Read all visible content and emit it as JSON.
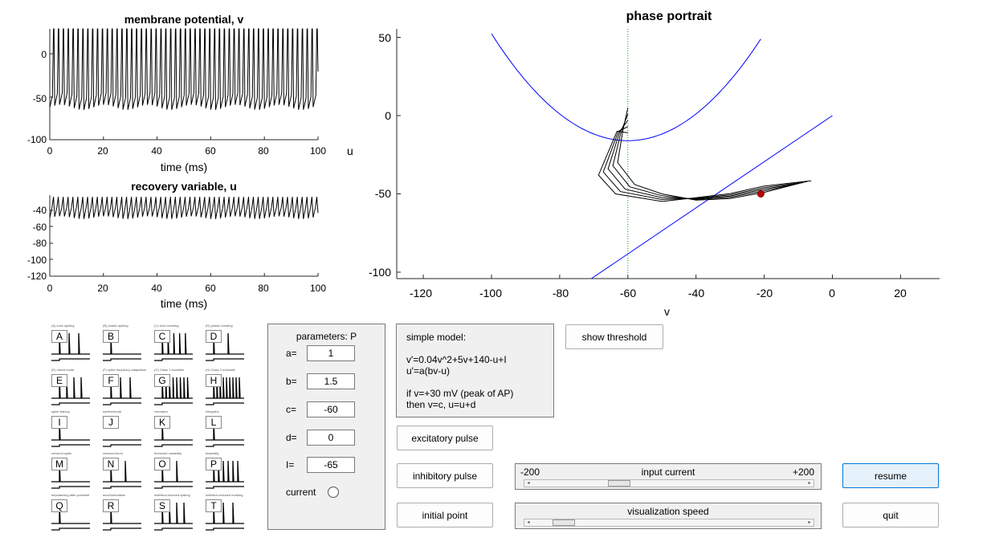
{
  "plots": {
    "membrane": {
      "title": "membrane potential, v",
      "xlabel": "time (ms)",
      "xticks": [
        "0",
        "20",
        "40",
        "60",
        "80",
        "100"
      ],
      "yticks": [
        "0",
        "-50",
        "-100"
      ]
    },
    "recovery": {
      "title": "recovery variable, u",
      "xlabel": "time (ms)",
      "xticks": [
        "0",
        "20",
        "40",
        "60",
        "80",
        "100"
      ],
      "yticks": [
        "-40",
        "-60",
        "-80",
        "-100",
        "-120"
      ]
    },
    "phase": {
      "title": "phase portrait",
      "xlabel": "v",
      "ylabel": "u",
      "xticks": [
        "-120",
        "-100",
        "-80",
        "-60",
        "-40",
        "-20",
        "0",
        "20"
      ],
      "yticks": [
        "50",
        "0",
        "-50",
        "-100"
      ]
    }
  },
  "chart_data": [
    {
      "type": "line",
      "title": "membrane potential, v",
      "xlabel": "time (ms)",
      "ylabel": "",
      "xlim": [
        0,
        100
      ],
      "ylim": [
        -100,
        30
      ],
      "spike_count": 55,
      "series": [
        {
          "peak": 30,
          "trough": -62
        }
      ]
    },
    {
      "type": "line",
      "title": "recovery variable, u",
      "xlabel": "time (ms)",
      "ylabel": "",
      "xlim": [
        0,
        100
      ],
      "ylim": [
        -120,
        -30
      ],
      "series": [
        {
          "max": -32,
          "min": -55
        }
      ]
    },
    {
      "type": "line",
      "title": "phase portrait",
      "xlabel": "v",
      "ylabel": "u",
      "xlim": [
        -130,
        32
      ],
      "ylim": [
        -103,
        55
      ],
      "series": [
        {
          "name": "",
          "kind": "v-nullcline",
          "color": "#0000ff",
          "x": [
            -100,
            -90,
            -80,
            -70,
            -60,
            -50,
            -40,
            -30,
            -20
          ],
          "y": [
            40,
            14,
            -4,
            -14,
            -16,
            -10,
            4,
            26,
            56
          ]
        },
        {
          "name": "",
          "kind": "u-nullcline",
          "color": "#0000ff",
          "x": [
            -70,
            0
          ],
          "y": [
            -105,
            0
          ]
        },
        {
          "name": "",
          "kind": "threshold",
          "color": "#00aa00",
          "x": [
            -60,
            -60
          ],
          "y": [
            -103,
            50
          ]
        },
        {
          "name": "",
          "kind": "trajectory",
          "color": "#000000",
          "x": [
            -62,
            -64,
            -66,
            -63,
            -58,
            -50,
            -40,
            -30,
            -20,
            -10
          ],
          "y": [
            -15,
            -25,
            -33,
            -42,
            -48,
            -52,
            -55,
            -53,
            -49,
            -44
          ]
        }
      ],
      "marker": {
        "x": -21,
        "y": -50,
        "color": "#c00000"
      }
    }
  ],
  "thumbnails": [
    {
      "letter": "A",
      "caption": "(A) tonic spiking"
    },
    {
      "letter": "B",
      "caption": "(B) phasic spiking"
    },
    {
      "letter": "C",
      "caption": "(C) tonic bursting"
    },
    {
      "letter": "D",
      "caption": "(D) phasic bursting"
    },
    {
      "letter": "E",
      "caption": "(E) mixed mode"
    },
    {
      "letter": "F",
      "caption": "(F) spike frequency adaptation"
    },
    {
      "letter": "G",
      "caption": "(G) Class 1 excitable"
    },
    {
      "letter": "H",
      "caption": "(H) Class 2 excitable"
    },
    {
      "letter": "I",
      "caption": "spike latency"
    },
    {
      "letter": "J",
      "caption": "subthreshold"
    },
    {
      "letter": "K",
      "caption": "resonator"
    },
    {
      "letter": "L",
      "caption": "integrator"
    },
    {
      "letter": "M",
      "caption": "rebound spike"
    },
    {
      "letter": "N",
      "caption": "rebound burst"
    },
    {
      "letter": "O",
      "caption": "threshold variability"
    },
    {
      "letter": "P",
      "caption": "bistability"
    },
    {
      "letter": "Q",
      "caption": "depolarizing after-potential"
    },
    {
      "letter": "R",
      "caption": "accommodation"
    },
    {
      "letter": "S",
      "caption": "inhibition-induced spiking"
    },
    {
      "letter": "T",
      "caption": "inhibition-induced bursting"
    }
  ],
  "params": {
    "title": "parameters: P",
    "rows": [
      {
        "label": "a=",
        "value": "1"
      },
      {
        "label": "b=",
        "value": "1.5"
      },
      {
        "label": "c=",
        "value": "-60"
      },
      {
        "label": "d=",
        "value": "0"
      },
      {
        "label": "I=",
        "value": "-65"
      }
    ],
    "current_label": "current"
  },
  "model": {
    "lines": [
      "simple model:",
      "",
      "v'=0.04v^2+5v+140-u+I",
      "u'=a(bv-u)",
      "",
      "if v=+30 mV (peak of AP)",
      "then v=c, u=u+d"
    ]
  },
  "buttons": {
    "show_threshold": "show threshold",
    "excitatory": "excitatory pulse",
    "inhibitory": "inhibitory pulse",
    "initial_point": "initial point",
    "resume": "resume",
    "quit": "quit"
  },
  "sliders": {
    "input": {
      "min_label": "-200",
      "max_label": "+200",
      "label": "input current",
      "value_fraction": 0.3
    },
    "speed": {
      "label": "visualization speed",
      "value_fraction": 0.08
    }
  }
}
